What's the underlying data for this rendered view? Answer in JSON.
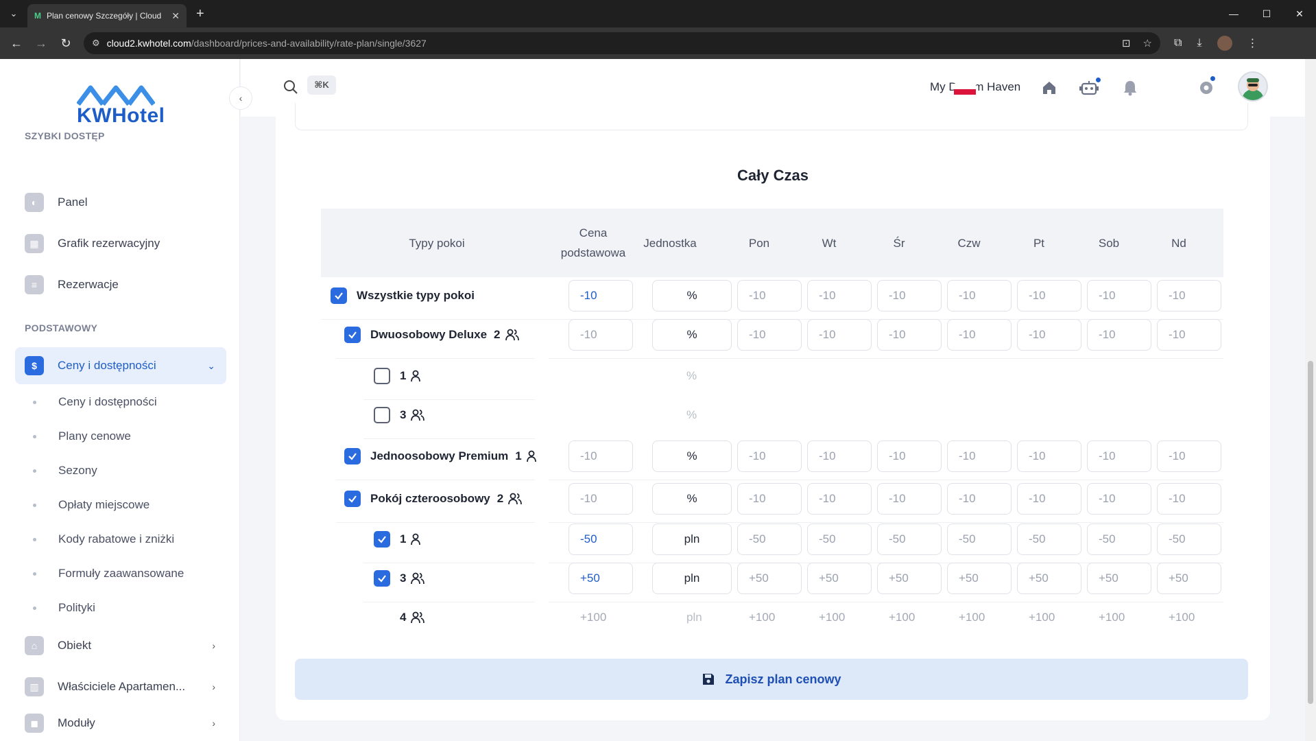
{
  "browser": {
    "tab_title": "Plan cenowy Szczegóły | Cloud",
    "url_host": "cloud2.kwhotel.com",
    "url_path": "/dashboard/prices-and-availability/rate-plan/single/3627"
  },
  "sidebar": {
    "logo_text": "KWHotel",
    "quick_access_label": "SZYBKI DOSTĘP",
    "quick_items": [
      {
        "label": "Panel",
        "icon": "gauge-icon"
      },
      {
        "label": "Grafik rezerwacyjny",
        "icon": "calendar-icon"
      },
      {
        "label": "Rezerwacje",
        "icon": "document-icon"
      }
    ],
    "basic_label": "PODSTAWOWY",
    "active_item": {
      "label": "Ceny i dostępności",
      "icon": "dollar-icon"
    },
    "sub_items": [
      "Ceny i dostępności",
      "Plany cenowe",
      "Sezony",
      "Opłaty miejscowe",
      "Kody rabatowe i zniżki",
      "Formuły zaawansowane",
      "Polityki"
    ],
    "more_items": [
      {
        "label": "Obiekt",
        "icon": "building-columns-icon"
      },
      {
        "label": "Właściciele Apartamen...",
        "icon": "apartment-icon"
      },
      {
        "label": "Moduły",
        "icon": "bag-icon"
      }
    ]
  },
  "header": {
    "search_shortcut": "⌘K",
    "property_name": "My Dream Haven"
  },
  "main": {
    "section_title": "Cały Czas",
    "columns": [
      "Typy pokoi",
      "Cena podstawowa",
      "Jednostka",
      "Pon",
      "Wt",
      "Śr",
      "Czw",
      "Pt",
      "Sob",
      "Nd"
    ],
    "rows": [
      {
        "label": "Wszystkie typy pokoi",
        "occ": "",
        "checked": true,
        "base": "-10",
        "unit": "%",
        "days": [
          "-10",
          "-10",
          "-10",
          "-10",
          "-10",
          "-10",
          "-10"
        ]
      },
      {
        "label": "Dwuosobowy Deluxe",
        "occ": "2",
        "checked": true,
        "base": "-10",
        "unit": "%",
        "days": [
          "-10",
          "-10",
          "-10",
          "-10",
          "-10",
          "-10",
          "-10"
        ]
      },
      {
        "label": "",
        "occ": "1",
        "checked": false,
        "base": "",
        "unit": "%",
        "days": []
      },
      {
        "label": "",
        "occ": "3",
        "checked": false,
        "base": "",
        "unit": "%",
        "days": []
      },
      {
        "label": "Jednoosobowy Premium",
        "occ": "1",
        "checked": true,
        "base": "-10",
        "unit": "%",
        "days": [
          "-10",
          "-10",
          "-10",
          "-10",
          "-10",
          "-10",
          "-10"
        ]
      },
      {
        "label": "Pokój czteroosobowy",
        "occ": "2",
        "checked": true,
        "base": "-10",
        "unit": "%",
        "days": [
          "-10",
          "-10",
          "-10",
          "-10",
          "-10",
          "-10",
          "-10"
        ]
      },
      {
        "label": "",
        "occ": "1",
        "checked": true,
        "base": "-50",
        "unit": "pln",
        "days": [
          "-50",
          "-50",
          "-50",
          "-50",
          "-50",
          "-50",
          "-50"
        ]
      },
      {
        "label": "",
        "occ": "3",
        "checked": true,
        "base": "+50",
        "unit": "pln",
        "days": [
          "+50",
          "+50",
          "+50",
          "+50",
          "+50",
          "+50",
          "+50"
        ]
      },
      {
        "label": "",
        "occ": "4",
        "checked": null,
        "base": "+100",
        "unit": "pln",
        "days": [
          "+100",
          "+100",
          "+100",
          "+100",
          "+100",
          "+100",
          "+100"
        ]
      }
    ],
    "save_label": "Zapisz plan cenowy"
  }
}
